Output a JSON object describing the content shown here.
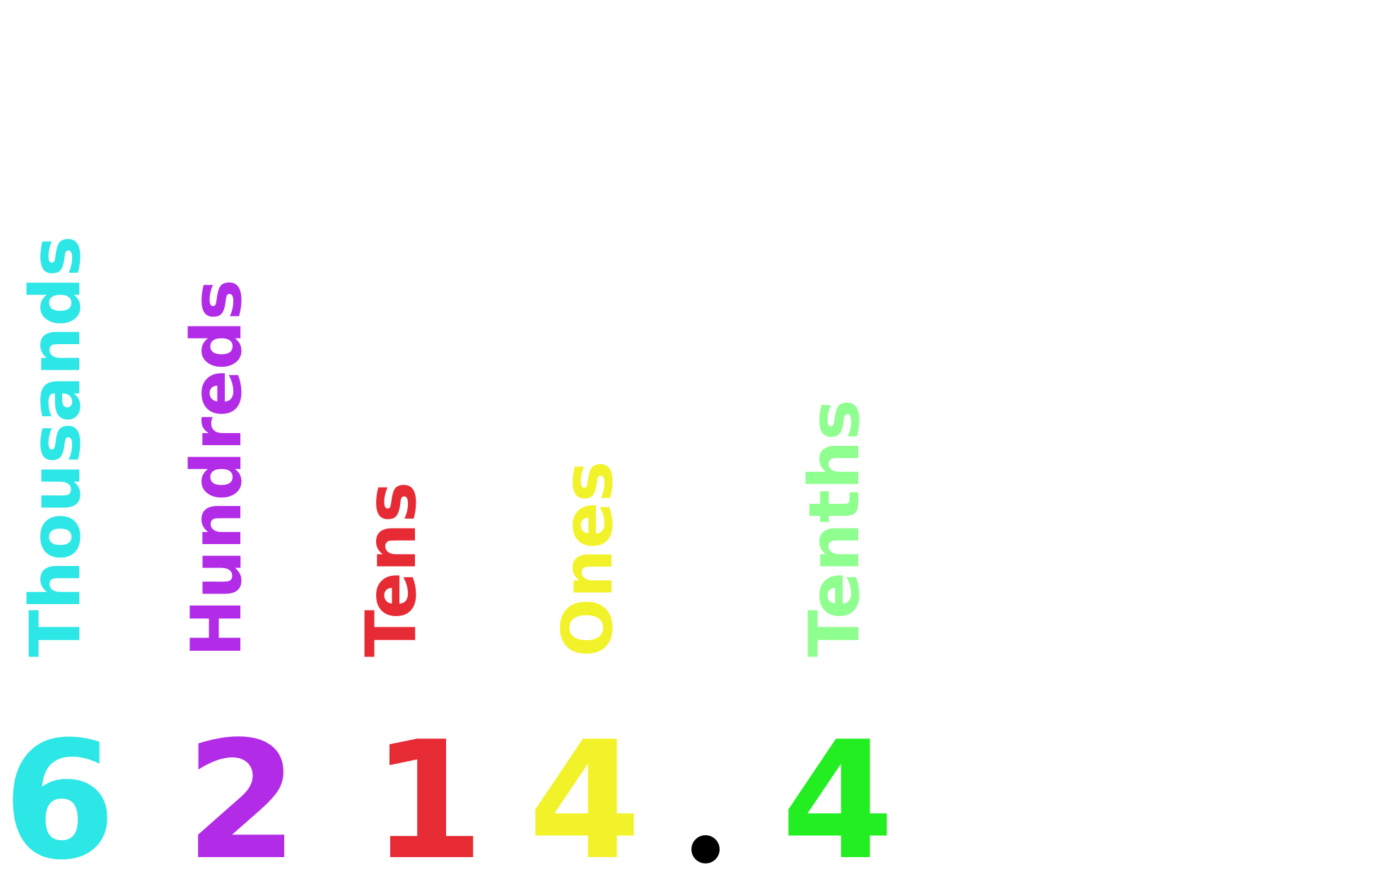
{
  "place_values": [
    {
      "label": "Thousands",
      "digit": "6",
      "label_color": "#2de6e6",
      "digit_color": "#2de6e6"
    },
    {
      "label": "Hundreds",
      "digit": "2",
      "label_color": "#b22be6",
      "digit_color": "#b22be6"
    },
    {
      "label": "Tens",
      "digit": "1",
      "label_color": "#e62b35",
      "digit_color": "#e62b35"
    },
    {
      "label": "Ones",
      "digit": "4",
      "label_color": "#f2f22b",
      "digit_color": "#f2f22b"
    },
    {
      "label": "Tenths",
      "digit": "4",
      "label_color": "#8fff8f",
      "digit_color": "#22ee22"
    }
  ],
  "decimal_point_color": "#000000"
}
